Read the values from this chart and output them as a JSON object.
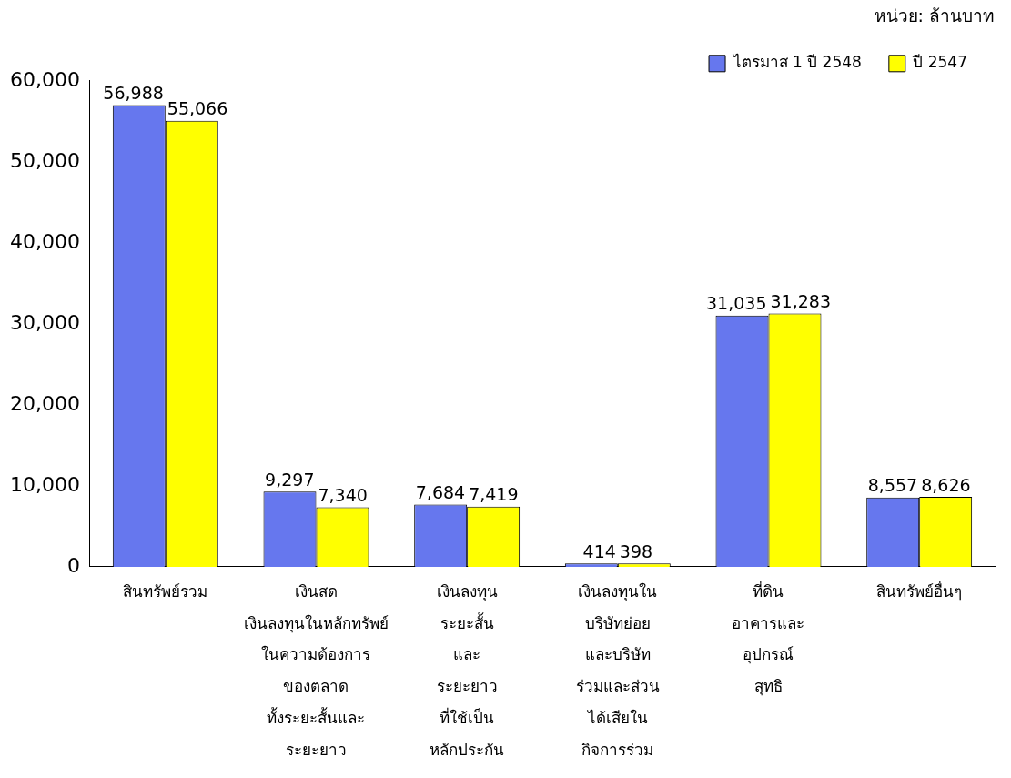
{
  "chart_data": {
    "type": "bar",
    "categories": [
      "สินทรัพย์รวม",
      "เงินสด\nเงินลงทุนในหลักทรัพย์\nในความต้องการ\nของตลาด\nทั้งระยะสั้นและ\nระยะยาว",
      "เงินลงทุน\nระยะสั้น\nและ\nระยะยาว\nที่ใช้เป็น\nหลักประกัน",
      "เงินลงทุนใน\nบริษัทย่อย\nและบริษัท\nร่วมและส่วน\nได้เสียใน\nกิจการร่วม",
      "ที่ดิน\nอาคารและ\nอุปกรณ์\nสุทธิ",
      "สินทรัพย์อื่นๆ"
    ],
    "series": [
      {
        "name": "ไตรมาส 1 ปี 2548",
        "color": "#6677ee",
        "values": [
          56988,
          9297,
          7684,
          414,
          31035,
          8557
        ],
        "value_labels": [
          "56,988",
          "9,297",
          "7,684",
          "414",
          "31,035",
          "8,557"
        ]
      },
      {
        "name": "ปี 2547",
        "color": "#ffff00",
        "values": [
          55066,
          7340,
          7419,
          398,
          31283,
          8626
        ],
        "value_labels": [
          "55,066",
          "7,340",
          "7,419",
          "398",
          "31,283",
          "8,626"
        ]
      }
    ],
    "ylim": [
      0,
      60000
    ],
    "yticks": [
      {
        "value": 0,
        "label": "0"
      },
      {
        "value": 10000,
        "label": "10,000"
      },
      {
        "value": 20000,
        "label": "20,000"
      },
      {
        "value": 30000,
        "label": "30,000"
      },
      {
        "value": 40000,
        "label": "40,000"
      },
      {
        "value": 50000,
        "label": "50,000"
      },
      {
        "value": 60000,
        "label": "60,000"
      }
    ],
    "grid": false,
    "legend": "top right",
    "annotations": [
      "หน่วย: ล้านบาท"
    ]
  }
}
